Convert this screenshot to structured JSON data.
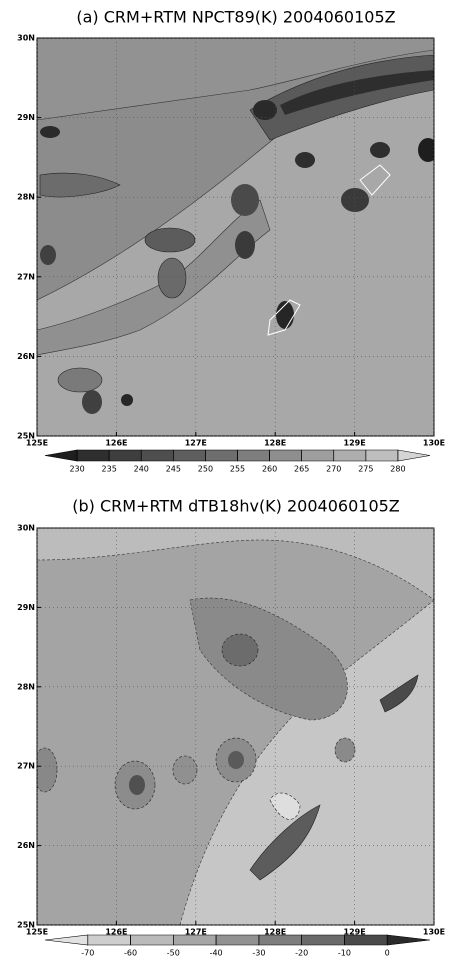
{
  "chart_data": [
    {
      "type": "contour",
      "title": "(a) CRM+RTM NPCT89(K) 2004060105Z",
      "xlim": [
        125,
        130
      ],
      "ylim": [
        25,
        30
      ],
      "xticks": [
        {
          "value": 125,
          "label": "125E"
        },
        {
          "value": 126,
          "label": "126E"
        },
        {
          "value": 127,
          "label": "127E"
        },
        {
          "value": 128,
          "label": "128E"
        },
        {
          "value": 129,
          "label": "129E"
        },
        {
          "value": 130,
          "label": "130E"
        }
      ],
      "yticks": [
        {
          "value": 25,
          "label": "25N"
        },
        {
          "value": 26,
          "label": "26N"
        },
        {
          "value": 27,
          "label": "27N"
        },
        {
          "value": 28,
          "label": "28N"
        },
        {
          "value": 29,
          "label": "29N"
        },
        {
          "value": 30,
          "label": "30N"
        }
      ],
      "grid": true,
      "levels": [
        230,
        235,
        240,
        245,
        250,
        255,
        260,
        265,
        270,
        275,
        280
      ],
      "colors": [
        "#1e1e1e",
        "#2e2e2e",
        "#3e3e3e",
        "#4e4e4e",
        "#5e5e5e",
        "#6e6e6e",
        "#7e7e7e",
        "#8e8e8e",
        "#9e9e9e",
        "#aeaeae",
        "#bebebe",
        "#d4d4d4"
      ]
    },
    {
      "type": "contour",
      "title": "(b) CRM+RTM dTB18hv(K) 2004060105Z",
      "xlim": [
        125,
        130
      ],
      "ylim": [
        25,
        30
      ],
      "xticks": [
        {
          "value": 125,
          "label": "125E"
        },
        {
          "value": 126,
          "label": "126E"
        },
        {
          "value": 127,
          "label": "127E"
        },
        {
          "value": 128,
          "label": "128E"
        },
        {
          "value": 129,
          "label": "129E"
        },
        {
          "value": 130,
          "label": "130E"
        }
      ],
      "yticks": [
        {
          "value": 25,
          "label": "25N"
        },
        {
          "value": 26,
          "label": "26N"
        },
        {
          "value": 27,
          "label": "27N"
        },
        {
          "value": 28,
          "label": "28N"
        },
        {
          "value": 29,
          "label": "29N"
        },
        {
          "value": 30,
          "label": "30N"
        }
      ],
      "grid": true,
      "levels": [
        -70,
        -60,
        -50,
        -40,
        -30,
        -20,
        -10,
        0
      ],
      "colors": [
        "#e2e2e2",
        "#cecece",
        "#bababa",
        "#a6a6a6",
        "#929292",
        "#7e7e7e",
        "#6a6a6a",
        "#4a4a4a",
        "#2a2a2a"
      ]
    }
  ]
}
